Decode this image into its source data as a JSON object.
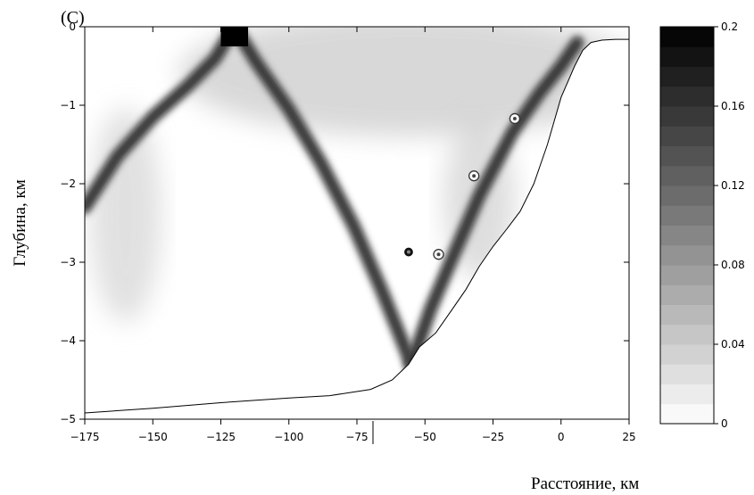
{
  "chart_data": {
    "type": "heatmap",
    "panel_label": "(C)",
    "xlabel": "Расстояние, км",
    "ylabel": "Глубина, км",
    "xlim": [
      -175,
      25
    ],
    "ylim": [
      -5,
      0
    ],
    "xticks": [
      -175,
      -150,
      -125,
      -100,
      -75,
      -50,
      -25,
      0,
      25
    ],
    "yticks": [
      0,
      -1,
      -2,
      -3,
      -4,
      -5
    ],
    "colorbar": {
      "range": [
        0,
        0.2
      ],
      "ticks": [
        0.2,
        0.16,
        0.12,
        0.08,
        0.04,
        0
      ],
      "colormap": "grayscale, white = 0, black = 0.2"
    },
    "seafloor_profile": {
      "x": [
        -175,
        -150,
        -125,
        -100,
        -85,
        -70,
        -62,
        -56,
        -52,
        -46,
        -40,
        -35,
        -30,
        -25,
        -20,
        -15,
        -10,
        -5,
        0,
        5,
        8,
        11,
        15,
        20,
        25
      ],
      "y": [
        -4.92,
        -4.86,
        -4.79,
        -4.73,
        -4.7,
        -4.62,
        -4.5,
        -4.3,
        -4.08,
        -3.9,
        -3.6,
        -3.35,
        -3.05,
        -2.8,
        -2.58,
        -2.35,
        -2.0,
        -1.5,
        -0.9,
        -0.5,
        -0.3,
        -0.2,
        -0.17,
        -0.16,
        -0.16
      ]
    },
    "rays": [
      {
        "x": [
          -120,
          -127,
          -137,
          -150,
          -163,
          -175
        ],
        "y": [
          0,
          -0.4,
          -0.75,
          -1.15,
          -1.65,
          -2.3
        ]
      },
      {
        "x": [
          -120,
          -112,
          -100,
          -88,
          -76,
          -66,
          -59,
          -55
        ],
        "y": [
          0,
          -0.45,
          -1.05,
          -1.75,
          -2.55,
          -3.35,
          -3.95,
          -4.3
        ]
      },
      {
        "x": [
          -55,
          -48,
          -40,
          -30,
          -18,
          -8,
          0,
          6
        ],
        "y": [
          -4.3,
          -3.6,
          -2.95,
          -2.15,
          -1.35,
          -0.85,
          -0.5,
          -0.2
        ]
      }
    ],
    "markers": [
      {
        "x": -56,
        "y": -2.87,
        "style": "dark"
      },
      {
        "x": -45,
        "y": -2.9,
        "style": "light"
      },
      {
        "x": -32,
        "y": -1.9,
        "style": "light"
      },
      {
        "x": -17,
        "y": -1.17,
        "style": "light"
      }
    ],
    "grid": false
  }
}
